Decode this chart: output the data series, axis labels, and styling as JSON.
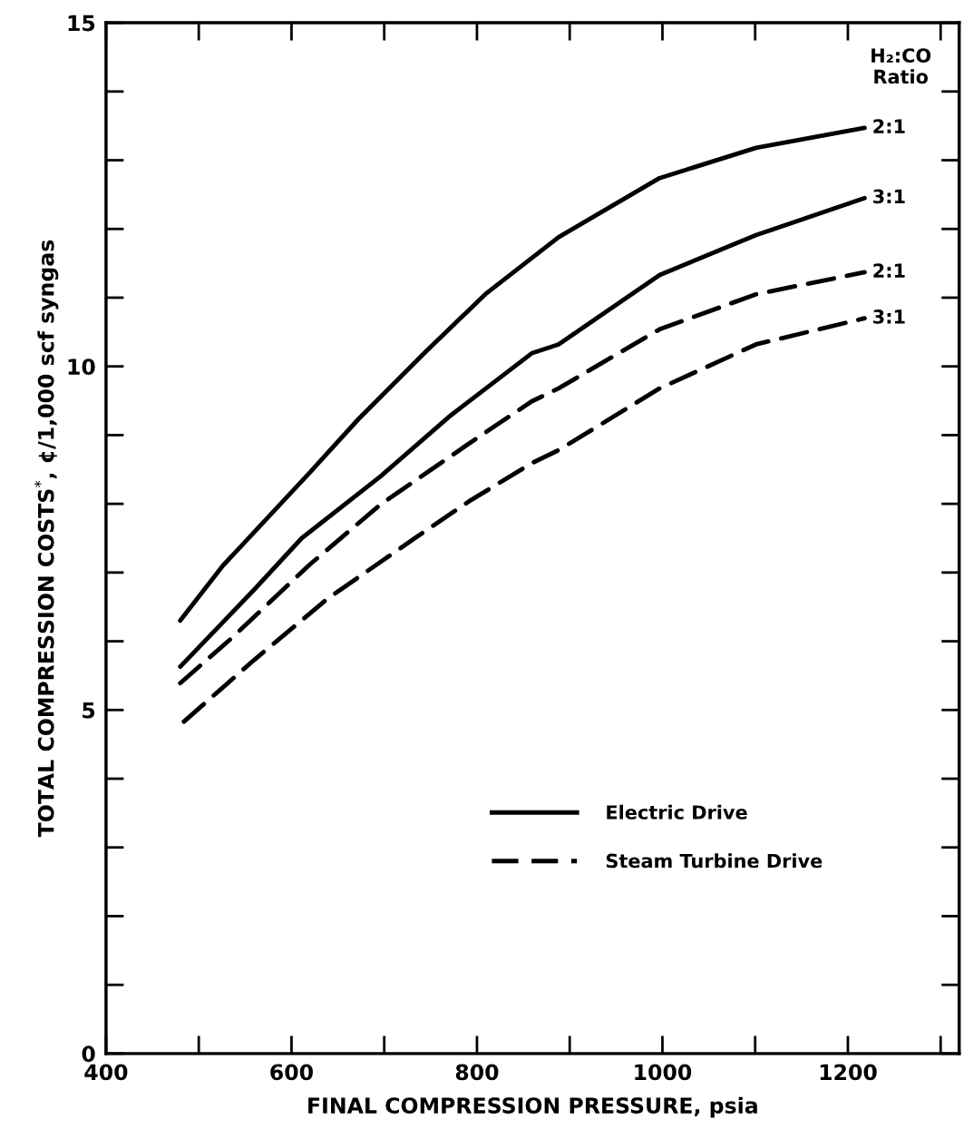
{
  "chart_data": {
    "type": "line",
    "xlabel": "FINAL COMPRESSION PRESSURE, psia",
    "ylabel": "TOTAL COMPRESSION COSTS$^{*}$, ¢/1,000 scf syngas",
    "legend_title": "H₂:CO\nRatio",
    "xlim": [
      400,
      1320
    ],
    "ylim": [
      0,
      15
    ],
    "xticks": [
      400,
      600,
      800,
      1000,
      1200
    ],
    "yticks": [
      0,
      5,
      10,
      15
    ],
    "grid": false,
    "marker": "none",
    "annotations": [
      "Electric Drive",
      "Steam Turbine Drive"
    ],
    "series": [
      {
        "name": "2:1",
        "color": "#000000",
        "line_style": "solid",
        "x": [
          480,
          526,
          620,
          672,
          743,
          809,
          888,
          997,
          1101,
          1218
        ],
        "values": [
          6.3,
          7.1,
          8.46,
          9.23,
          10.19,
          11.05,
          11.88,
          12.74,
          13.18,
          13.47
        ]
      },
      {
        "name": "3:1",
        "color": "#000000",
        "line_style": "solid",
        "x": [
          480,
          559,
          611,
          696,
          772,
          859,
          888,
          997,
          1101,
          1218
        ],
        "values": [
          5.63,
          6.74,
          7.5,
          8.4,
          9.29,
          10.19,
          10.32,
          11.33,
          11.91,
          12.45
        ]
      },
      {
        "name": "2:1",
        "color": "#000000",
        "line_style": "dashed",
        "x": [
          480,
          535,
          620,
          696,
          795,
          859,
          888,
          997,
          1101,
          1218
        ],
        "values": [
          5.39,
          6.04,
          7.12,
          7.99,
          8.91,
          9.49,
          9.68,
          10.54,
          11.05,
          11.37
        ]
      },
      {
        "name": "3:1",
        "color": "#000000",
        "line_style": "dashed",
        "x": [
          484,
          559,
          639,
          734,
          793,
          859,
          888,
          997,
          1101,
          1218
        ],
        "values": [
          4.83,
          5.72,
          6.62,
          7.51,
          8.05,
          8.59,
          8.78,
          9.68,
          10.32,
          10.7
        ]
      }
    ]
  }
}
